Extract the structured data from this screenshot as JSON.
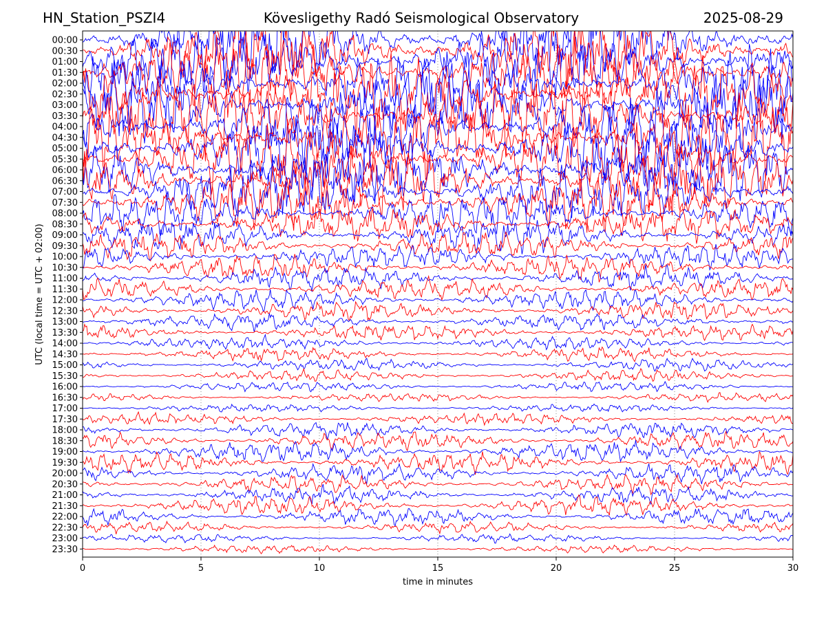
{
  "header": {
    "station": "HN_Station_PSZI4",
    "observatory": "Kövesligethy Radó Seismological Observatory",
    "date": "2025-08-29"
  },
  "chart_data": {
    "type": "line",
    "title": "Kövesligethy Radó Seismological Observatory",
    "xlabel": "time in minutes",
    "ylabel": "UTC (local time = UTC + 02:00)",
    "xlim": [
      0,
      30
    ],
    "x_ticks": [
      0,
      5,
      10,
      15,
      20,
      25,
      30
    ],
    "grid": "vertical dotted at x ticks",
    "trace_colors": [
      "#ff0000",
      "#0000ff"
    ],
    "rows": [
      {
        "label": "00:00",
        "amplitude": 1.0
      },
      {
        "label": "00:30",
        "amplitude": 1.0
      },
      {
        "label": "01:00",
        "amplitude": 1.0
      },
      {
        "label": "01:30",
        "amplitude": 1.0
      },
      {
        "label": "02:00",
        "amplitude": 1.0
      },
      {
        "label": "02:30",
        "amplitude": 1.0
      },
      {
        "label": "03:00",
        "amplitude": 1.0
      },
      {
        "label": "03:30",
        "amplitude": 1.0
      },
      {
        "label": "04:00",
        "amplitude": 1.0
      },
      {
        "label": "04:30",
        "amplitude": 1.0
      },
      {
        "label": "05:00",
        "amplitude": 1.0
      },
      {
        "label": "05:30",
        "amplitude": 0.95
      },
      {
        "label": "06:00",
        "amplitude": 0.9
      },
      {
        "label": "06:30",
        "amplitude": 0.85
      },
      {
        "label": "07:00",
        "amplitude": 0.8
      },
      {
        "label": "07:30",
        "amplitude": 0.7
      },
      {
        "label": "08:00",
        "amplitude": 0.55
      },
      {
        "label": "08:30",
        "amplitude": 0.45
      },
      {
        "label": "09:00",
        "amplitude": 0.4
      },
      {
        "label": "09:30",
        "amplitude": 0.35
      },
      {
        "label": "10:00",
        "amplitude": 0.3
      },
      {
        "label": "10:30",
        "amplitude": 0.3
      },
      {
        "label": "11:00",
        "amplitude": 0.28
      },
      {
        "label": "11:30",
        "amplitude": 0.25
      },
      {
        "label": "12:00",
        "amplitude": 0.25
      },
      {
        "label": "12:30",
        "amplitude": 0.22
      },
      {
        "label": "13:00",
        "amplitude": 0.2
      },
      {
        "label": "13:30",
        "amplitude": 0.18
      },
      {
        "label": "14:00",
        "amplitude": 0.15
      },
      {
        "label": "14:30",
        "amplitude": 0.15
      },
      {
        "label": "15:00",
        "amplitude": 0.13
      },
      {
        "label": "15:30",
        "amplitude": 0.12
      },
      {
        "label": "16:00",
        "amplitude": 0.1
      },
      {
        "label": "16:30",
        "amplitude": 0.08
      },
      {
        "label": "17:00",
        "amplitude": 0.08
      },
      {
        "label": "17:30",
        "amplitude": 0.12
      },
      {
        "label": "18:00",
        "amplitude": 0.18
      },
      {
        "label": "18:30",
        "amplitude": 0.22
      },
      {
        "label": "19:00",
        "amplitude": 0.25
      },
      {
        "label": "19:30",
        "amplitude": 0.25
      },
      {
        "label": "20:00",
        "amplitude": 0.22
      },
      {
        "label": "20:30",
        "amplitude": 0.2
      },
      {
        "label": "21:00",
        "amplitude": 0.2
      },
      {
        "label": "21:30",
        "amplitude": 0.22
      },
      {
        "label": "22:00",
        "amplitude": 0.2
      },
      {
        "label": "22:30",
        "amplitude": 0.12
      },
      {
        "label": "23:00",
        "amplitude": 0.08
      },
      {
        "label": "23:30",
        "amplitude": 0.07
      }
    ]
  }
}
